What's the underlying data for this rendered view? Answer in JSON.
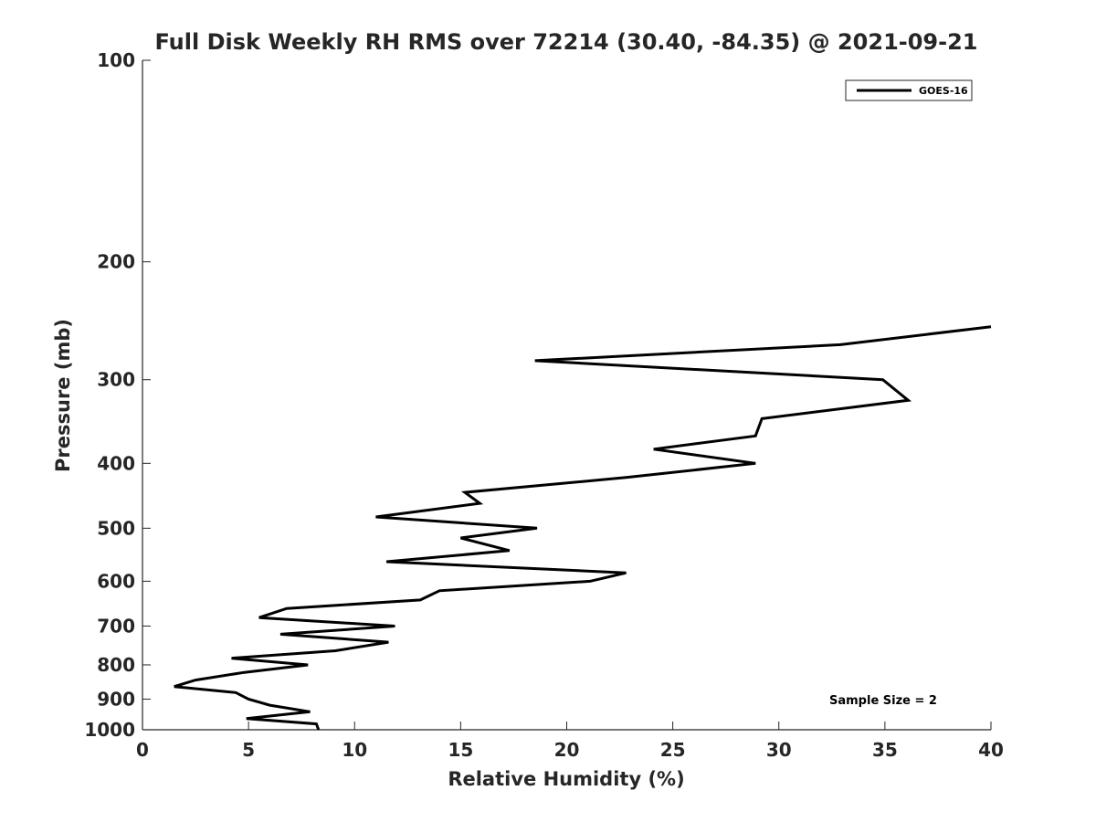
{
  "chart_data": {
    "type": "line",
    "title": "Full Disk Weekly RH RMS over 72214 (30.40, -84.35) @ 2021-09-21",
    "xlabel": "Relative Humidity (%)",
    "ylabel": "Pressure (mb)",
    "xlim": [
      0,
      40
    ],
    "ylim": [
      100,
      1000
    ],
    "y_scale": "log",
    "y_reversed": true,
    "grid": false,
    "x_ticks": [
      0,
      5,
      10,
      15,
      20,
      25,
      30,
      35,
      40
    ],
    "y_ticks": [
      100,
      200,
      300,
      400,
      500,
      600,
      700,
      800,
      900,
      1000
    ],
    "legend": {
      "placement": "top-right",
      "entries": [
        "GOES-16"
      ]
    },
    "annotation": "Sample Size = 2",
    "series": [
      {
        "name": "GOES-16",
        "color": "#000000",
        "points": [
          [
            40.0,
            250
          ],
          [
            32.9,
            266
          ],
          [
            18.5,
            281
          ],
          [
            34.9,
            300
          ],
          [
            36.1,
            322
          ],
          [
            29.2,
            343
          ],
          [
            28.9,
            364
          ],
          [
            24.1,
            381
          ],
          [
            28.9,
            400
          ],
          [
            22.8,
            420
          ],
          [
            15.2,
            442
          ],
          [
            15.9,
            459
          ],
          [
            11.0,
            481
          ],
          [
            18.6,
            500
          ],
          [
            15.0,
            517
          ],
          [
            17.3,
            540
          ],
          [
            11.5,
            561
          ],
          [
            22.8,
            583
          ],
          [
            21.1,
            600
          ],
          [
            14.0,
            620
          ],
          [
            13.1,
            640
          ],
          [
            6.8,
            659
          ],
          [
            5.5,
            680
          ],
          [
            11.9,
            700
          ],
          [
            6.5,
            720
          ],
          [
            11.6,
            740
          ],
          [
            9.1,
            762
          ],
          [
            4.2,
            782
          ],
          [
            7.8,
            800
          ],
          [
            4.8,
            821
          ],
          [
            2.5,
            843
          ],
          [
            1.5,
            862
          ],
          [
            4.4,
            880
          ],
          [
            5.0,
            900
          ],
          [
            6.0,
            919
          ],
          [
            7.9,
            940
          ],
          [
            4.9,
            962
          ],
          [
            8.2,
            980
          ],
          [
            8.3,
            1000
          ]
        ]
      }
    ]
  }
}
